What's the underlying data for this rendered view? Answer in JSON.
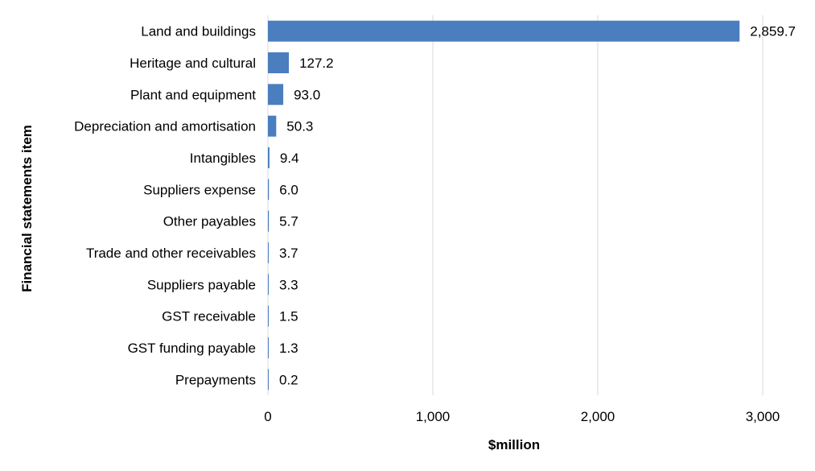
{
  "chart_data": {
    "type": "bar",
    "orientation": "horizontal",
    "title": "",
    "xlabel": "$million",
    "ylabel": "Financial statements item",
    "xlim": [
      0,
      3000
    ],
    "x_ticks": [
      0,
      1000,
      2000,
      3000
    ],
    "x_tick_labels": [
      "0",
      "1,000",
      "2,000",
      "3,000"
    ],
    "grid": true,
    "legend": "none",
    "bar_color": "#4a7ebf",
    "categories": [
      "Land and buildings",
      "Heritage and cultural",
      "Plant and equipment",
      "Depreciation and amortisation",
      "Intangibles",
      "Suppliers expense",
      "Other payables",
      "Trade and other receivables",
      "Suppliers payable",
      "GST receivable",
      "GST funding payable",
      "Prepayments"
    ],
    "values": [
      2859.7,
      127.2,
      93.0,
      50.3,
      9.4,
      6.0,
      5.7,
      3.7,
      3.3,
      1.5,
      1.3,
      0.2
    ],
    "value_labels": [
      "2,859.7",
      "127.2",
      "93.0",
      "50.3",
      "9.4",
      "6.0",
      "5.7",
      "3.7",
      "3.3",
      "1.5",
      "1.3",
      "0.2"
    ]
  }
}
